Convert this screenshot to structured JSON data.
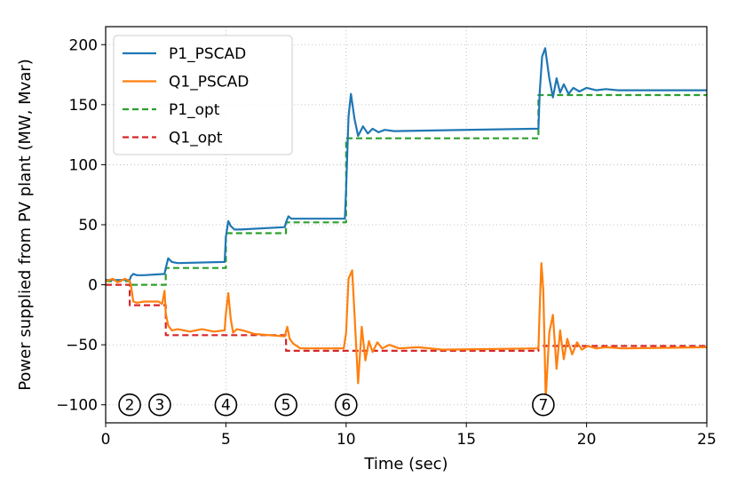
{
  "chart_data": {
    "type": "line",
    "xlabel": "Time (sec)",
    "ylabel": "Power supplied from PV plant (MW, Mvar)",
    "xlim": [
      0,
      25
    ],
    "ylim": [
      -115,
      215
    ],
    "xticks": [
      0,
      5,
      10,
      15,
      20,
      25
    ],
    "xtick_labels": [
      "0",
      "5",
      "10",
      "15",
      "20",
      "25"
    ],
    "yticks": [
      -100,
      -50,
      0,
      50,
      100,
      150,
      200
    ],
    "ytick_labels": [
      "−100",
      "−50",
      "0",
      "50",
      "100",
      "150",
      "200"
    ],
    "grid": true,
    "legend_position": "top-left",
    "colors": {
      "P1_PSCAD": "#1f77b4",
      "Q1_PSCAD": "#ff7f0e",
      "P1_opt": "#2ca02c",
      "Q1_opt": "#d62728"
    },
    "series": [
      {
        "name": "P1_PSCAD",
        "style": "solid",
        "x": [
          0,
          1.0,
          1.05,
          1.15,
          1.3,
          1.6,
          2.45,
          2.5,
          2.6,
          2.75,
          3.0,
          4.95,
          5.0,
          5.1,
          5.2,
          5.35,
          5.6,
          7.45,
          7.5,
          7.6,
          7.72,
          7.9,
          9.95,
          10.0,
          10.1,
          10.2,
          10.35,
          10.5,
          10.7,
          10.9,
          11.1,
          11.35,
          11.6,
          12.0,
          18.0,
          18.05,
          18.15,
          18.28,
          18.45,
          18.6,
          18.75,
          18.9,
          19.05,
          19.25,
          19.45,
          19.7,
          20.0,
          20.4,
          20.8,
          21.3,
          25
        ],
        "y": [
          4,
          4,
          7,
          9,
          8,
          8,
          9,
          14,
          22,
          19,
          18,
          19,
          40,
          53,
          49,
          46,
          46,
          48,
          52,
          57,
          55,
          55,
          55,
          80,
          140,
          159,
          138,
          124,
          132,
          126,
          130,
          127,
          129,
          128,
          130,
          160,
          190,
          197,
          172,
          156,
          172,
          160,
          167,
          159,
          164,
          161,
          164,
          162,
          163,
          162,
          162
        ]
      },
      {
        "name": "Q1_PSCAD",
        "style": "solid",
        "x": [
          0,
          0.3,
          0.5,
          0.8,
          1.0,
          1.05,
          1.15,
          1.3,
          1.6,
          2.2,
          2.35,
          2.45,
          2.5,
          2.6,
          2.75,
          3.0,
          3.5,
          4.0,
          4.5,
          4.95,
          5.0,
          5.1,
          5.2,
          5.3,
          5.45,
          5.7,
          6.2,
          7.45,
          7.55,
          7.65,
          7.8,
          8.1,
          9.9,
          10.0,
          10.1,
          10.25,
          10.35,
          10.5,
          10.65,
          10.8,
          10.95,
          11.1,
          11.3,
          11.5,
          11.8,
          12.2,
          13.0,
          14.0,
          18.0,
          18.05,
          18.12,
          18.2,
          18.3,
          18.45,
          18.6,
          18.75,
          18.9,
          19.05,
          19.2,
          19.4,
          19.6,
          19.8,
          20.05,
          20.4,
          20.8,
          21.5,
          25
        ],
        "y": [
          3,
          5,
          2,
          5,
          3,
          0,
          -14,
          -15,
          -14,
          -14,
          -16,
          -5,
          -24,
          -34,
          -38,
          -37,
          -39,
          -37,
          -39,
          -38,
          -24,
          -7,
          -28,
          -40,
          -37,
          -38,
          -41,
          -43,
          -35,
          -45,
          -49,
          -53,
          -53,
          -40,
          5,
          12,
          -25,
          -82,
          -35,
          -63,
          -47,
          -56,
          -48,
          -53,
          -50,
          -53,
          -52,
          -54,
          -53,
          -20,
          18,
          -5,
          -95,
          -40,
          -25,
          -70,
          -38,
          -62,
          -45,
          -58,
          -48,
          -54,
          -51,
          -53,
          -52,
          -53,
          -52
        ]
      },
      {
        "name": "P1_opt",
        "style": "dashed",
        "x": [
          0,
          1.0,
          1.0,
          2.5,
          2.5,
          5.0,
          5.0,
          7.5,
          7.5,
          10.0,
          10.0,
          18.0,
          18.0,
          25
        ],
        "y": [
          3,
          3,
          0,
          0,
          14,
          14,
          43,
          43,
          52,
          52,
          122,
          122,
          158,
          158
        ]
      },
      {
        "name": "Q1_opt",
        "style": "dashed",
        "x": [
          0,
          1.0,
          1.0,
          2.5,
          2.5,
          7.5,
          7.5,
          18.0,
          18.0,
          25
        ],
        "y": [
          0,
          0,
          -17,
          -17,
          -42,
          -42,
          -55,
          -55,
          -51,
          -51
        ]
      }
    ],
    "annotations": [
      {
        "label": "2",
        "x": 1.0,
        "y": -100
      },
      {
        "label": "3",
        "x": 2.25,
        "y": -100
      },
      {
        "label": "4",
        "x": 5.0,
        "y": -100
      },
      {
        "label": "5",
        "x": 7.5,
        "y": -100
      },
      {
        "label": "6",
        "x": 10.0,
        "y": -100
      },
      {
        "label": "7",
        "x": 18.2,
        "y": -100
      }
    ]
  }
}
